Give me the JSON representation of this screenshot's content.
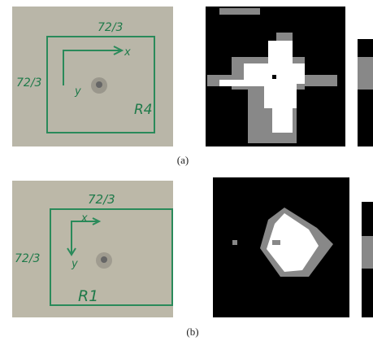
{
  "figure": {
    "panels": [
      {
        "label": "(a)",
        "annotations": {
          "top": "72/3",
          "left": "72/3",
          "x_axis": "x",
          "y_axis": "y",
          "region": "R4"
        }
      },
      {
        "label": "(b)",
        "annotations": {
          "top": "72/3",
          "left": "72/3",
          "x_axis": "x",
          "y_axis": "y",
          "region": "R1"
        }
      }
    ]
  }
}
